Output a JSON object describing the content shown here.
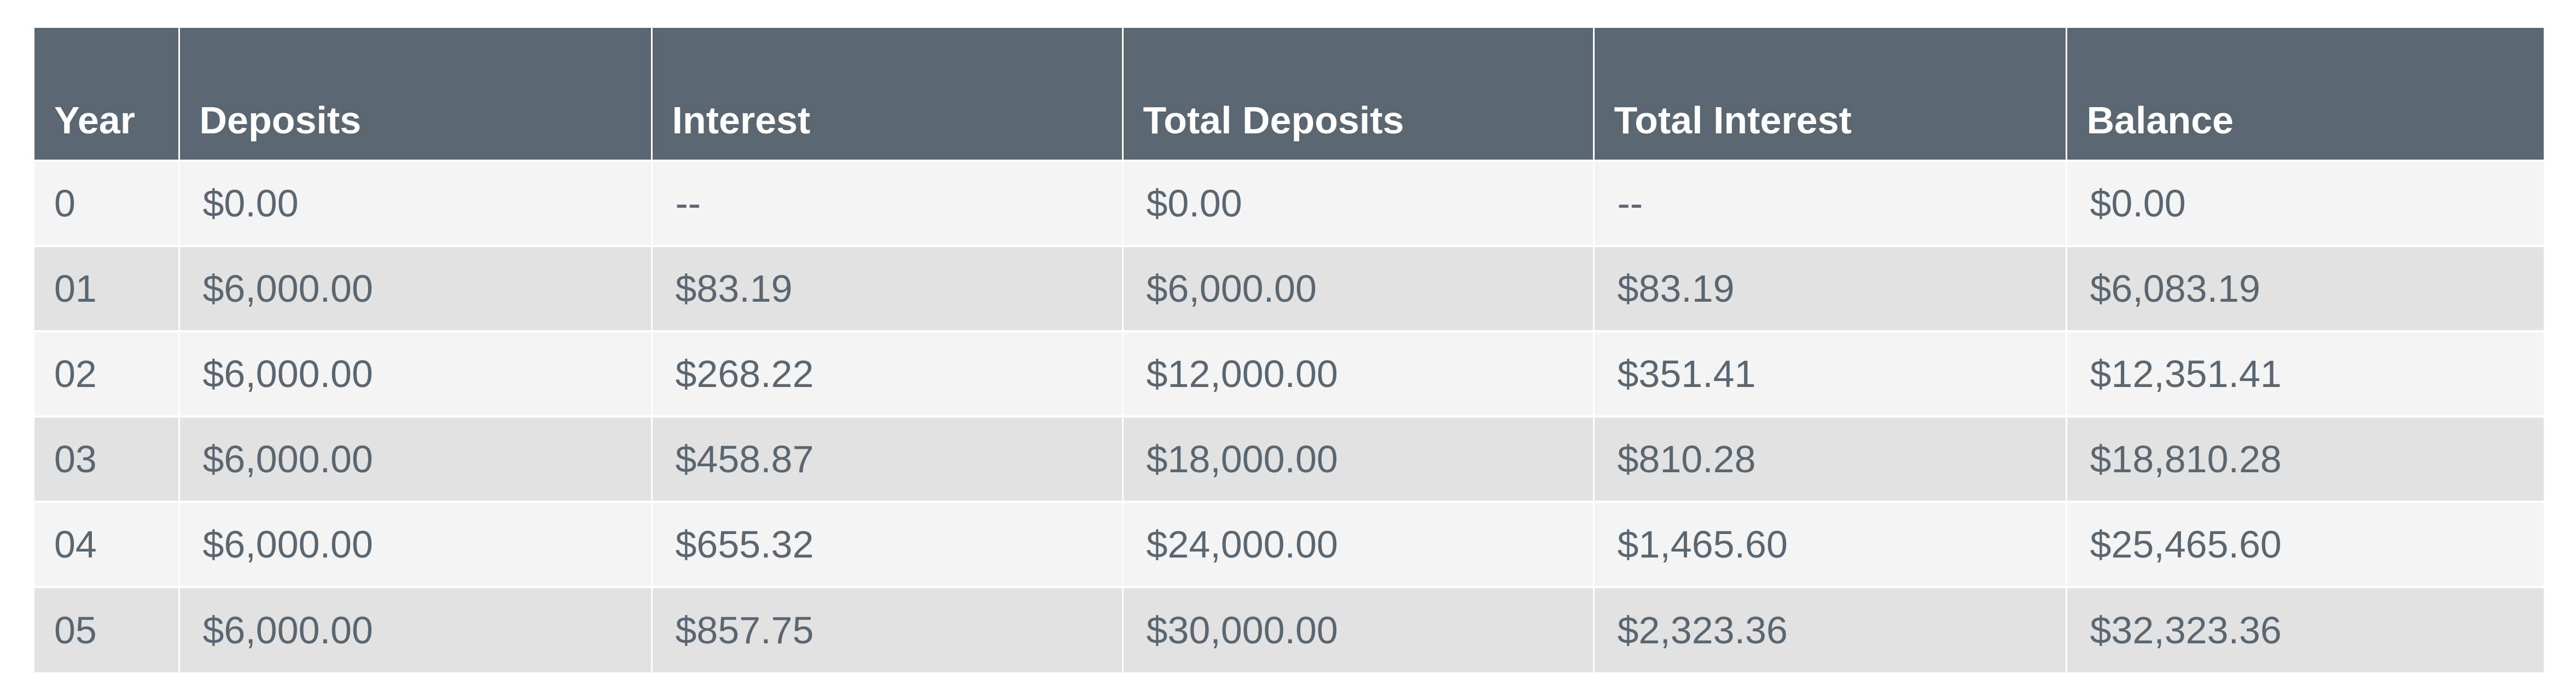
{
  "table": {
    "headers": [
      "Year",
      "Deposits",
      "Interest",
      "Total Deposits",
      "Total Interest",
      "Balance"
    ],
    "rows": [
      [
        "0",
        "$0.00",
        "--",
        "$0.00",
        "--",
        "$0.00"
      ],
      [
        "01",
        "$6,000.00",
        "$83.19",
        "$6,000.00",
        "$83.19",
        "$6,083.19"
      ],
      [
        "02",
        "$6,000.00",
        "$268.22",
        "$12,000.00",
        "$351.41",
        "$12,351.41"
      ],
      [
        "03",
        "$6,000.00",
        "$458.87",
        "$18,000.00",
        "$810.28",
        "$18,810.28"
      ],
      [
        "04",
        "$6,000.00",
        "$655.32",
        "$24,000.00",
        "$1,465.60",
        "$25,465.60"
      ],
      [
        "05",
        "$6,000.00",
        "$857.75",
        "$30,000.00",
        "$2,323.36",
        "$32,323.36"
      ]
    ]
  },
  "colors": {
    "header_bg": "#5a6670",
    "header_text": "#ffffff",
    "cell_text": "#5a6670",
    "row_light": "#f4f4f4",
    "row_dark": "#e2e2e2"
  }
}
